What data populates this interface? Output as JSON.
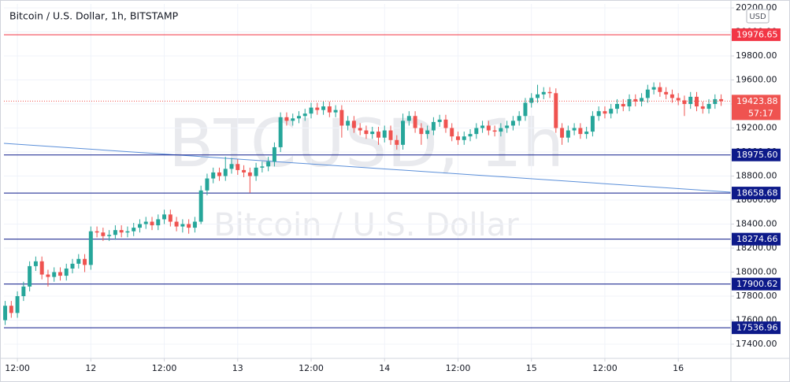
{
  "chart_data": {
    "type": "candlestick",
    "title": "Bitcoin / U.S. Dollar, 1h, BITSTAMP",
    "watermark": {
      "symbol": "BTCUSD, 1h",
      "name": "Bitcoin / U.S. Dollar"
    },
    "currency": "USD",
    "up_color": "#26a69a",
    "down_color": "#ef5350",
    "grid": true,
    "xlim": [
      -0.2,
      118.6
    ],
    "xticks": [
      {
        "value": 2,
        "label": "12:00"
      },
      {
        "value": 14,
        "label": "12"
      },
      {
        "value": 26,
        "label": "12:00"
      },
      {
        "value": 38,
        "label": "13"
      },
      {
        "value": 50,
        "label": "12:00"
      },
      {
        "value": 62,
        "label": "14"
      },
      {
        "value": 74,
        "label": "12:00"
      },
      {
        "value": 86,
        "label": "15"
      },
      {
        "value": 98,
        "label": "12:00"
      },
      {
        "value": 110,
        "label": "16"
      }
    ],
    "ylim": [
      17282,
      20233
    ],
    "yticks": [
      {
        "value": 17400,
        "label": "17400.00"
      },
      {
        "value": 17600,
        "label": "17600.00"
      },
      {
        "value": 17800,
        "label": "17800.00"
      },
      {
        "value": 18000,
        "label": "18000.00"
      },
      {
        "value": 18200,
        "label": "18200.00"
      },
      {
        "value": 18400,
        "label": "18400.00"
      },
      {
        "value": 18600,
        "label": "18600.00"
      },
      {
        "value": 18800,
        "label": "18800.00"
      },
      {
        "value": 19000,
        "label": "19000.00"
      },
      {
        "value": 19200,
        "label": "19200.00"
      },
      {
        "value": 19400,
        "label": "19400.00"
      },
      {
        "value": 19600,
        "label": "19600.00"
      },
      {
        "value": 19800,
        "label": "19800.00"
      },
      {
        "value": 20000,
        "label": "20000.00"
      },
      {
        "value": 20200,
        "label": "20200.00"
      }
    ],
    "open": [
      17600,
      17720,
      17660,
      17800,
      17880,
      18050,
      18090,
      17980,
      17960,
      18000,
      17970,
      18030,
      18070,
      18110,
      18060,
      18340,
      18330,
      18300,
      18310,
      18350,
      18330,
      18340,
      18370,
      18400,
      18420,
      18390,
      18440,
      18480,
      18420,
      18380,
      18400,
      18370,
      18420,
      18680,
      18780,
      18830,
      18800,
      18860,
      18900,
      18850,
      18830,
      18800,
      18870,
      18880,
      18920,
      19040,
      19290,
      19260,
      19280,
      19300,
      19320,
      19370,
      19350,
      19380,
      19330,
      19350,
      19220,
      19260,
      19200,
      19180,
      19150,
      19170,
      19120,
      19180,
      19100,
      19060,
      19260,
      19300,
      19200,
      19150,
      19180,
      19250,
      19270,
      19200,
      19130,
      19100,
      19130,
      19150,
      19200,
      19220,
      19180,
      19170,
      19200,
      19220,
      19260,
      19300,
      19410,
      19450,
      19480,
      19500,
      19490,
      19200,
      19120,
      19180,
      19200,
      19150,
      19170,
      19300,
      19340,
      19320,
      19360,
      19400,
      19380,
      19440,
      19420,
      19450,
      19520,
      19540,
      19500,
      19480,
      19450,
      19430,
      19400,
      19460,
      19380,
      19360,
      19400,
      19440
    ],
    "high": [
      17760,
      17760,
      17840,
      17920,
      18090,
      18130,
      18130,
      18020,
      18040,
      18040,
      18070,
      18110,
      18150,
      18150,
      18380,
      18380,
      18370,
      18350,
      18390,
      18390,
      18380,
      18410,
      18440,
      18460,
      18460,
      18480,
      18520,
      18520,
      18460,
      18440,
      18440,
      18460,
      18720,
      18820,
      18870,
      18870,
      18960,
      18950,
      18940,
      18890,
      18870,
      18910,
      18920,
      18960,
      19080,
      19330,
      19330,
      19320,
      19340,
      19360,
      19410,
      19410,
      19420,
      19420,
      19390,
      19390,
      19300,
      19300,
      19240,
      19220,
      19210,
      19210,
      19220,
      19220,
      19140,
      19320,
      19340,
      19340,
      19240,
      19220,
      19290,
      19310,
      19310,
      19240,
      19170,
      19170,
      19190,
      19240,
      19260,
      19260,
      19220,
      19240,
      19260,
      19300,
      19340,
      19450,
      19490,
      19560,
      19540,
      19540,
      19530,
      19240,
      19220,
      19240,
      19240,
      19210,
      19340,
      19380,
      19380,
      19400,
      19440,
      19440,
      19480,
      19480,
      19490,
      19560,
      19580,
      19580,
      19540,
      19520,
      19490,
      19470,
      19500,
      19500,
      19420,
      19440,
      19480,
      19480
    ],
    "low": [
      17560,
      17620,
      17620,
      17760,
      17840,
      18010,
      17940,
      17880,
      17920,
      17930,
      17930,
      17990,
      18030,
      18000,
      18020,
      18290,
      18260,
      18260,
      18270,
      18290,
      18290,
      18300,
      18330,
      18360,
      18350,
      18350,
      18400,
      18380,
      18340,
      18330,
      18320,
      18330,
      18400,
      18640,
      18740,
      18760,
      18760,
      18820,
      18810,
      18790,
      18660,
      18760,
      18830,
      18840,
      18880,
      19000,
      19220,
      19220,
      19240,
      19260,
      19280,
      19310,
      19310,
      19290,
      19290,
      19120,
      19180,
      19160,
      19140,
      19110,
      19110,
      19060,
      19080,
      19060,
      19020,
      19020,
      19220,
      19160,
      19060,
      19110,
      19140,
      19210,
      19160,
      19090,
      19060,
      19060,
      19090,
      19110,
      19160,
      19140,
      19130,
      19130,
      19160,
      19180,
      19220,
      19260,
      19370,
      19410,
      19440,
      19450,
      19160,
      19060,
      19080,
      19140,
      19110,
      19110,
      19130,
      19260,
      19280,
      19280,
      19320,
      19340,
      19340,
      19380,
      19380,
      19410,
      19480,
      19460,
      19440,
      19410,
      19390,
      19300,
      19360,
      19340,
      19320,
      19320,
      19360,
      19384
    ],
    "close": [
      17720,
      17660,
      17800,
      17880,
      18050,
      18090,
      17980,
      17960,
      18000,
      17970,
      18030,
      18070,
      18110,
      18060,
      18340,
      18330,
      18300,
      18310,
      18350,
      18330,
      18340,
      18370,
      18400,
      18420,
      18390,
      18440,
      18480,
      18420,
      18380,
      18400,
      18370,
      18420,
      18680,
      18780,
      18830,
      18800,
      18860,
      18900,
      18850,
      18830,
      18800,
      18870,
      18880,
      18920,
      19040,
      19290,
      19260,
      19280,
      19300,
      19320,
      19370,
      19350,
      19380,
      19330,
      19350,
      19220,
      19260,
      19200,
      19180,
      19150,
      19170,
      19120,
      19180,
      19100,
      19060,
      19260,
      19300,
      19200,
      19150,
      19180,
      19250,
      19270,
      19200,
      19130,
      19100,
      19130,
      19150,
      19200,
      19220,
      19180,
      19170,
      19200,
      19220,
      19260,
      19300,
      19410,
      19450,
      19480,
      19500,
      19490,
      19200,
      19120,
      19180,
      19200,
      19150,
      19170,
      19300,
      19340,
      19320,
      19360,
      19400,
      19380,
      19440,
      19420,
      19450,
      19520,
      19540,
      19500,
      19480,
      19450,
      19430,
      19400,
      19460,
      19380,
      19360,
      19400,
      19440,
      19423.88
    ],
    "levels": [
      {
        "value": 19976.65,
        "label": "19976.65",
        "color": "#f23645"
      },
      {
        "value": 18975.6,
        "label": "18975.60",
        "color": "#0d1a8a"
      },
      {
        "value": 18658.68,
        "label": "18658.68",
        "color": "#0d1a8a"
      },
      {
        "value": 18274.66,
        "label": "18274.66",
        "color": "#0d1a8a"
      },
      {
        "value": 17900.62,
        "label": "17900.62",
        "color": "#0d1a8a"
      },
      {
        "value": 17536.96,
        "label": "17536.96",
        "color": "#0d1a8a"
      }
    ],
    "trendline": {
      "values": [
        19072,
        18666
      ],
      "color": "#5b8fd9"
    },
    "last_price": {
      "value": 19423.88,
      "label": "19423.88",
      "countdown": "57:17",
      "color": "#ef5350"
    }
  }
}
